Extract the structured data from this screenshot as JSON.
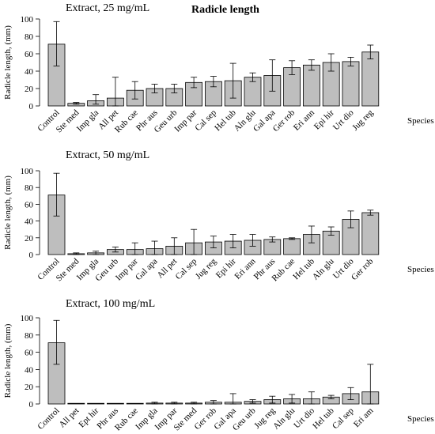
{
  "title": "Radicle length",
  "colors": {
    "bar_fill": "#bebebe",
    "bar_stroke": "#000000"
  },
  "chart_data": [
    {
      "type": "bar",
      "subtitle": "Extract, 25 mg/mL",
      "xlabel": "Species",
      "ylabel": "Radicle length, (mm)",
      "ylim": [
        0,
        100
      ],
      "yticks": [
        0,
        20,
        40,
        60,
        80,
        100
      ],
      "categories": [
        "Control",
        "Ste med",
        "Imp gla",
        "All pet",
        "Rub cae",
        "Phr aus",
        "Geu urb",
        "Imp par",
        "Cal sep",
        "Hel tub",
        "Aln glu",
        "Gal apa",
        "Ger rob",
        "Eri ann",
        "Epi hir",
        "Urt dio",
        "Jug reg"
      ],
      "values": [
        71,
        3,
        6,
        9,
        18,
        20,
        20,
        27,
        28,
        29,
        33,
        35,
        44,
        47,
        50,
        51,
        62
      ],
      "error_upper": [
        97,
        4,
        13,
        33,
        28,
        25,
        25,
        33,
        34,
        49,
        38,
        53,
        52,
        53,
        60,
        56,
        70
      ],
      "error_lower": [
        46,
        2,
        2,
        0,
        8,
        15,
        15,
        21,
        22,
        9,
        28,
        17,
        36,
        41,
        40,
        46,
        54
      ]
    },
    {
      "type": "bar",
      "subtitle": "Extract, 50 mg/mL",
      "xlabel": "Species",
      "ylabel": "Radicle length, (mm)",
      "ylim": [
        0,
        100
      ],
      "yticks": [
        0,
        20,
        40,
        60,
        80,
        100
      ],
      "categories": [
        "Control",
        "Ste med",
        "Imp gla",
        "Geu urb",
        "Imp par",
        "Gal apa",
        "All pet",
        "Cal sep",
        "Jug reg",
        "Epi hir",
        "Eri ann",
        "Phr aus",
        "Rub cae",
        "Hel tub",
        "Aln glu",
        "Urt dio",
        "Ger rob"
      ],
      "values": [
        71,
        1,
        2,
        6,
        6,
        7,
        10,
        14,
        15,
        16,
        17,
        18,
        19,
        24,
        28,
        42,
        50
      ],
      "error_upper": [
        97,
        2,
        4,
        9,
        14,
        16,
        20,
        30,
        22,
        24,
        24,
        21,
        20,
        34,
        33,
        52,
        53
      ],
      "error_lower": [
        46,
        0,
        0,
        3,
        0,
        0,
        0,
        0,
        8,
        8,
        10,
        15,
        18,
        14,
        23,
        32,
        47
      ]
    },
    {
      "type": "bar",
      "subtitle": "Extract, 100 mg/mL",
      "xlabel": "Species",
      "ylabel": "Radicle length, (mm)",
      "ylim": [
        0,
        100
      ],
      "yticks": [
        0,
        20,
        40,
        60,
        80,
        100
      ],
      "categories": [
        "Control",
        "All pet",
        "Ept hir",
        "Phr aus",
        "Rub cae",
        "Imp gla",
        "Imp par",
        "Ste med",
        "Ger rob",
        "Gal apa",
        "Geu urb",
        "Jug reg",
        "Aln glu",
        "Urt dio",
        "Hel tub",
        "Cal sep",
        "Eri am"
      ],
      "values": [
        71,
        0,
        0,
        0,
        0,
        1,
        1,
        1,
        2,
        2,
        3,
        5,
        6,
        6,
        8,
        12,
        14
      ],
      "error_upper": [
        97,
        0,
        0,
        0,
        0,
        2,
        2,
        2,
        4,
        12,
        5,
        9,
        11,
        14,
        10,
        19,
        46
      ],
      "error_lower": [
        46,
        0,
        0,
        0,
        0,
        0,
        0,
        0,
        0,
        0,
        1,
        1,
        1,
        0,
        6,
        5,
        0
      ]
    }
  ]
}
